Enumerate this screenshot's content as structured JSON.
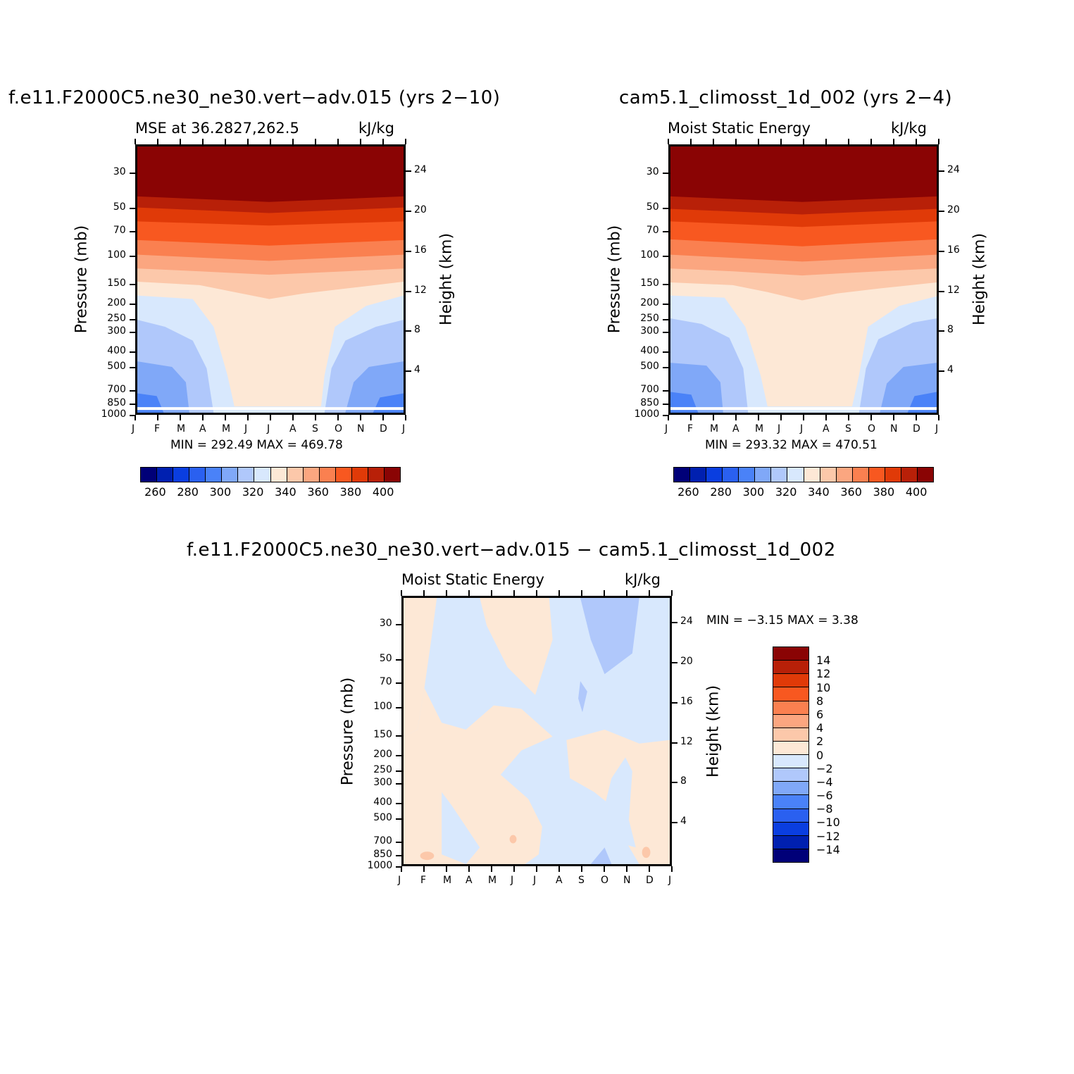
{
  "panel_a": {
    "title": "f.e11.F2000C5.ne30_ne30.vert−adv.015 (yrs 2−10)",
    "left_label": "MSE at 36.2827,262.5",
    "units": "kJ/kg",
    "minmax": "MIN = 292.49 MAX = 469.78"
  },
  "panel_b": {
    "title": "cam5.1_climosst_1d_002 (yrs 2−4)",
    "left_label": "Moist Static Energy",
    "units": "kJ/kg",
    "minmax": "MIN = 293.32 MAX = 470.51"
  },
  "panel_c": {
    "title": "f.e11.F2000C5.ne30_ne30.vert−adv.015 − cam5.1_climosst_1d_002",
    "left_label": "Moist Static Energy",
    "units": "kJ/kg",
    "minmax": "MIN = −3.15 MAX = 3.38"
  },
  "axes": {
    "ylabel": "Pressure (mb)",
    "y2label": "Height (km)",
    "pressure_ticks": [
      "30",
      "50",
      "70",
      "100",
      "150",
      "200",
      "250",
      "300",
      "400",
      "500",
      "700",
      "850",
      "1000"
    ],
    "height_ticks": [
      "24",
      "20",
      "16",
      "12",
      "8",
      "4"
    ],
    "month_ticks": [
      "J",
      "F",
      "M",
      "A",
      "M",
      "J",
      "J",
      "A",
      "S",
      "O",
      "N",
      "D",
      "J"
    ]
  },
  "colorbar_top": {
    "colors": [
      "#000078",
      "#0020b0",
      "#0a3ee0",
      "#2a60f0",
      "#4a82f8",
      "#80a8f8",
      "#b0c8fb",
      "#d8e8fd",
      "#fde8d6",
      "#fcc8aa",
      "#fba680",
      "#fa8050",
      "#f85820",
      "#e03a08",
      "#b82008",
      "#8a0404"
    ],
    "labels": [
      "260",
      "280",
      "300",
      "320",
      "340",
      "360",
      "380",
      "400"
    ]
  },
  "colorbar_diff": {
    "colors": [
      "#8a0404",
      "#b82008",
      "#e03a08",
      "#f85820",
      "#fa8050",
      "#fba680",
      "#fcc8aa",
      "#fde8d6",
      "#d8e8fd",
      "#b0c8fb",
      "#80a8f8",
      "#4a82f8",
      "#2a60f0",
      "#0a3ee0",
      "#0020b0",
      "#000078"
    ],
    "labels": [
      "14",
      "12",
      "10",
      "8",
      "6",
      "4",
      "2",
      "0",
      "−2",
      "−4",
      "−6",
      "−8",
      "−10",
      "−12",
      "−14"
    ]
  },
  "chart_data": [
    {
      "type": "heatmap",
      "title": "f.e11.F2000C5.ne30_ne30.vert−adv.015 (yrs 2−10)",
      "subtitle": "MSE at 36.2827,262.5",
      "units": "kJ/kg",
      "xlabel": "",
      "ylabel": "Pressure (mb)",
      "y2label": "Height (km)",
      "x_ticks": [
        "J",
        "F",
        "M",
        "A",
        "M",
        "J",
        "J",
        "A",
        "S",
        "O",
        "N",
        "D",
        "J"
      ],
      "y_ticks": [
        30,
        50,
        70,
        100,
        150,
        200,
        250,
        300,
        400,
        500,
        700,
        850,
        1000
      ],
      "y_scale": "log",
      "ylim": [
        1000,
        20
      ],
      "min": 292.49,
      "max": 469.78,
      "contour_levels": [
        260,
        270,
        280,
        290,
        300,
        310,
        320,
        330,
        340,
        350,
        360,
        370,
        380,
        390,
        400
      ]
    },
    {
      "type": "heatmap",
      "title": "cam5.1_climosst_1d_002 (yrs 2−4)",
      "subtitle": "Moist Static Energy",
      "units": "kJ/kg",
      "ylabel": "Pressure (mb)",
      "y2label": "Height (km)",
      "x_ticks": [
        "J",
        "F",
        "M",
        "A",
        "M",
        "J",
        "J",
        "A",
        "S",
        "O",
        "N",
        "D",
        "J"
      ],
      "y_ticks": [
        30,
        50,
        70,
        100,
        150,
        200,
        250,
        300,
        400,
        500,
        700,
        850,
        1000
      ],
      "y_scale": "log",
      "ylim": [
        1000,
        20
      ],
      "min": 293.32,
      "max": 470.51,
      "contour_levels": [
        260,
        270,
        280,
        290,
        300,
        310,
        320,
        330,
        340,
        350,
        360,
        370,
        380,
        390,
        400
      ]
    },
    {
      "type": "heatmap",
      "title": "f.e11.F2000C5.ne30_ne30.vert−adv.015 − cam5.1_climosst_1d_002",
      "subtitle": "Moist Static Energy",
      "units": "kJ/kg",
      "ylabel": "Pressure (mb)",
      "y2label": "Height (km)",
      "x_ticks": [
        "J",
        "F",
        "M",
        "A",
        "M",
        "J",
        "J",
        "A",
        "S",
        "O",
        "N",
        "D",
        "J"
      ],
      "y_ticks": [
        30,
        50,
        70,
        100,
        150,
        200,
        250,
        300,
        400,
        500,
        700,
        850,
        1000
      ],
      "y_scale": "log",
      "ylim": [
        1000,
        20
      ],
      "min": -3.15,
      "max": 3.38,
      "contour_levels": [
        -14,
        -12,
        -10,
        -8,
        -6,
        -4,
        -2,
        0,
        2,
        4,
        6,
        8,
        10,
        12,
        14
      ]
    }
  ]
}
